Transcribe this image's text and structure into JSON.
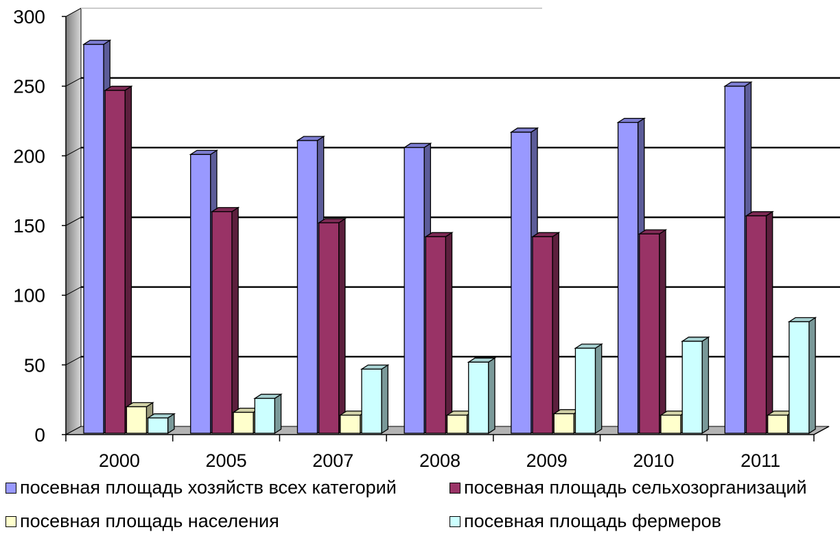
{
  "chart_data": {
    "type": "bar",
    "categories": [
      "2000",
      "2005",
      "2007",
      "2008",
      "2009",
      "2010",
      "2011"
    ],
    "series": [
      {
        "name": "посевная площадь хозяйств всех категорий",
        "color": "#9999ff",
        "values": [
          278,
          199,
          209,
          204,
          215,
          222,
          248
        ]
      },
      {
        "name": "посевная площадь сельхозорганизаций",
        "color": "#993366",
        "values": [
          245,
          158,
          150,
          140,
          140,
          142,
          155
        ]
      },
      {
        "name": "посевная площадь населения",
        "color": "#ffffcc",
        "values": [
          18,
          14,
          12,
          12,
          13,
          12,
          12
        ]
      },
      {
        "name": "посевная площадь фермеров",
        "color": "#ccffff",
        "values": [
          10,
          24,
          45,
          50,
          60,
          65,
          79
        ]
      }
    ],
    "y_ticks": [
      "0",
      "50",
      "100",
      "150",
      "200",
      "250",
      "300"
    ],
    "ylim": [
      0,
      300
    ],
    "grid": true,
    "style": "3d-clustered-column",
    "legend_position": "bottom"
  }
}
